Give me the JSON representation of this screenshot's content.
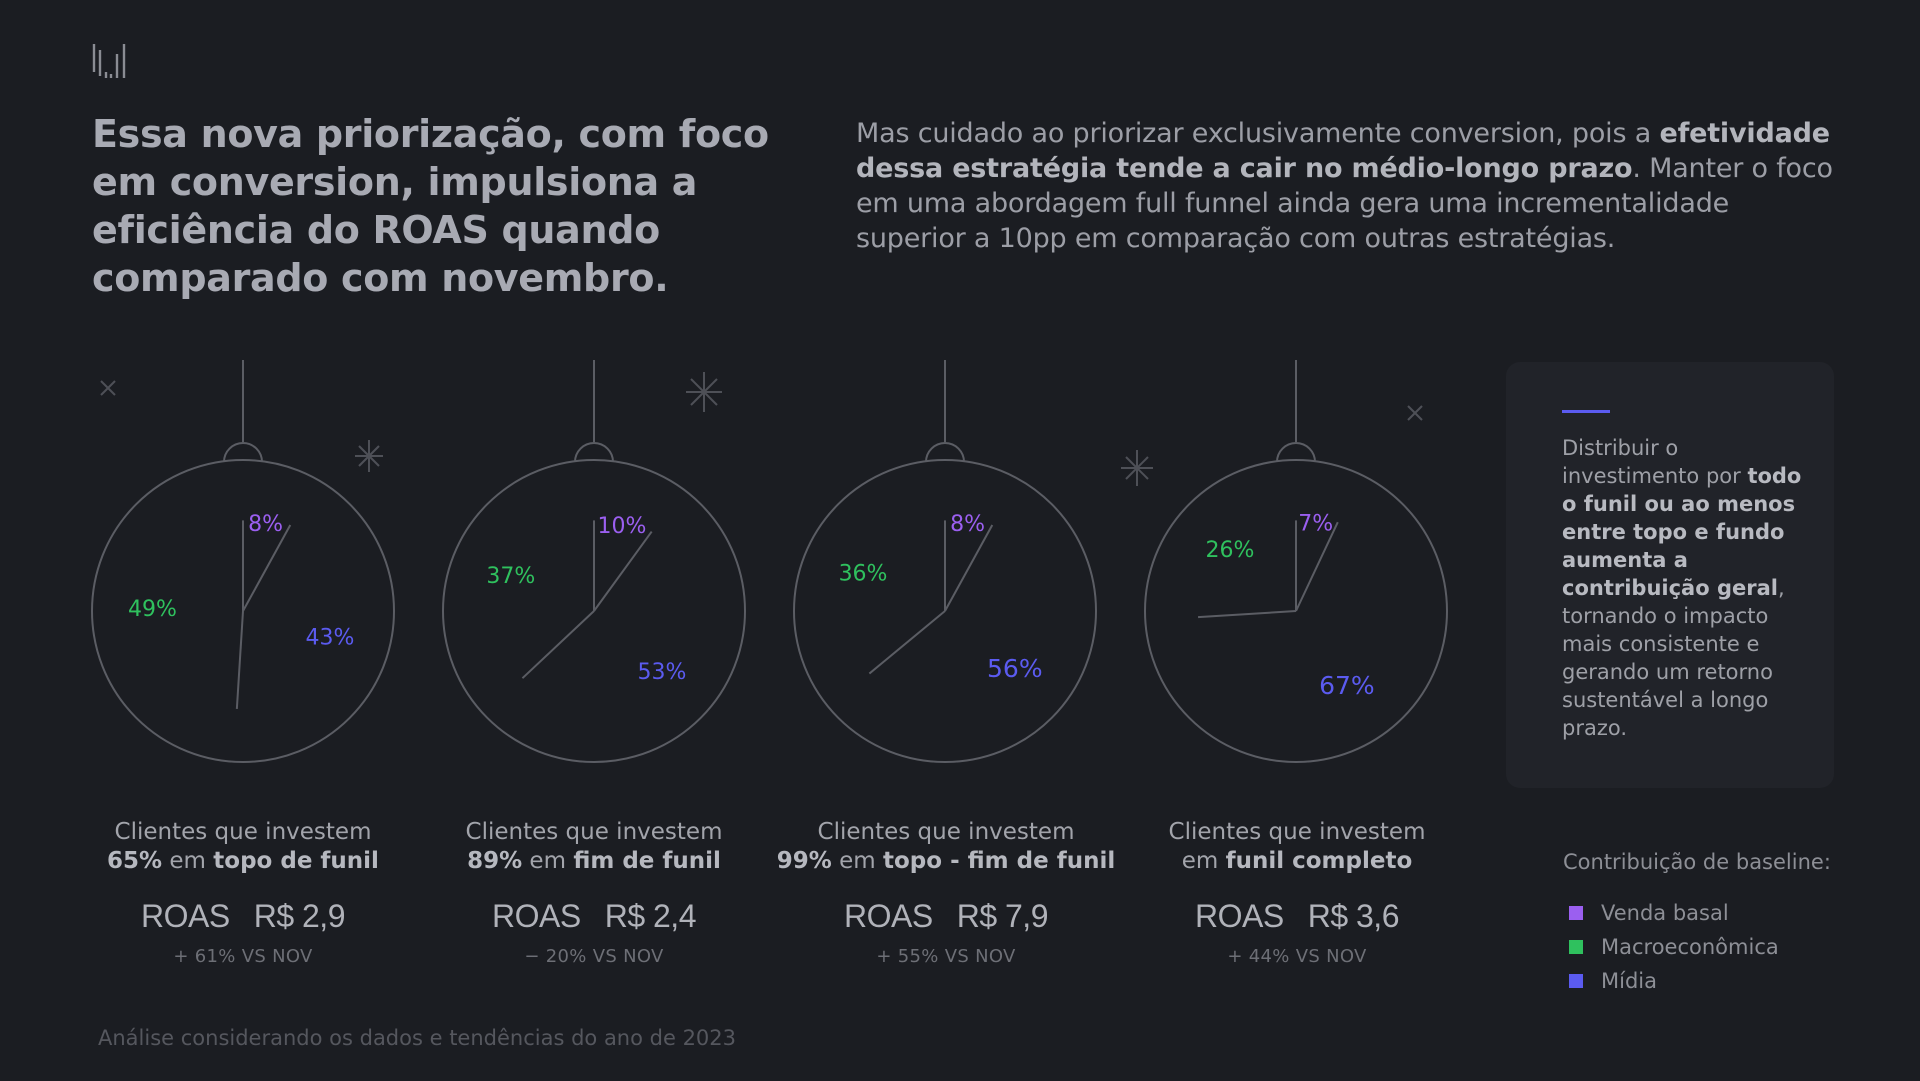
{
  "headline": "Essa nova priorização, com foco em conversion, impulsiona a eficiência do ROAS quando comparado com novembro.",
  "intro": {
    "part1": "Mas cuidado ao priorizar exclusivamente conversion, pois a ",
    "bold": "efetividade dessa estratégia tende a cair no médio-longo prazo",
    "part2": ". Manter o foco em uma abordagem full funnel ainda gera uma incrementalidade superior a 10pp em comparação com outras estratégias."
  },
  "colors": {
    "venda_basal": "#9b5ff0",
    "macroeconomica": "#2fc15e",
    "midia": "#5b5bf0",
    "line": "#5b5d64",
    "background": "#1b1d22"
  },
  "chart_data": [
    {
      "type": "pie",
      "slices": [
        {
          "category": "Venda basal",
          "value": 8,
          "label": "8%"
        },
        {
          "category": "Mídia",
          "value": 43,
          "label": "43%"
        },
        {
          "category": "Macroeconômica",
          "value": 49,
          "label": "49%"
        }
      ],
      "caption": {
        "line1": "Clientes que investem",
        "pct": "65%",
        "mid": " em ",
        "bold": "topo de funil"
      },
      "roas_label": "ROAS",
      "roas_value": "R$ 2,9",
      "delta": "+ 61% VS NOV"
    },
    {
      "type": "pie",
      "slices": [
        {
          "category": "Venda basal",
          "value": 10,
          "label": "10%"
        },
        {
          "category": "Mídia",
          "value": 53,
          "label": "53%"
        },
        {
          "category": "Macroeconômica",
          "value": 37,
          "label": "37%"
        }
      ],
      "caption": {
        "line1": "Clientes que investem",
        "pct": "89%",
        "mid": " em ",
        "bold": "fim de funil"
      },
      "roas_label": "ROAS",
      "roas_value": "R$ 2,4",
      "delta": "− 20% VS NOV"
    },
    {
      "type": "pie",
      "slices": [
        {
          "category": "Venda basal",
          "value": 8,
          "label": "8%"
        },
        {
          "category": "Mídia",
          "value": 56,
          "label": "56%"
        },
        {
          "category": "Macroeconômica",
          "value": 36,
          "label": "36%"
        }
      ],
      "caption": {
        "line1": "Clientes que investem",
        "pct": "99%",
        "mid": " em ",
        "bold": "topo - fim de funil"
      },
      "roas_label": "ROAS",
      "roas_value": "R$ 7,9",
      "delta": "+ 55% VS NOV"
    },
    {
      "type": "pie",
      "slices": [
        {
          "category": "Venda basal",
          "value": 7,
          "label": "7%"
        },
        {
          "category": "Mídia",
          "value": 67,
          "label": "67%"
        },
        {
          "category": "Macroeconômica",
          "value": 26,
          "label": "26%"
        }
      ],
      "caption": {
        "line1": "Clientes que investem",
        "pct": "",
        "mid": "em ",
        "bold": "funil completo"
      },
      "roas_label": "ROAS",
      "roas_value": "R$ 3,6",
      "delta": "+ 44% VS NOV"
    }
  ],
  "card": {
    "part1": "Distribuir o investimento por ",
    "bold": "todo o funil ou ao menos entre topo e fundo aumenta a contribuição geral",
    "part2": ", tornando o impacto mais consistente e gerando um retorno sustentável a longo prazo."
  },
  "legend": {
    "title": "Contribuição de baseline:",
    "items": [
      {
        "label": "Venda basal",
        "color": "#9b5ff0"
      },
      {
        "label": "Macroeconômica",
        "color": "#2fc15e"
      },
      {
        "label": "Mídia",
        "color": "#5b5bf0"
      }
    ]
  },
  "footnote": "Análise considerando os dados e tendências do ano de 2023",
  "icons": {
    "logo": "brand-logo-icon",
    "decor": [
      "x-mark-icon",
      "sparkle-icon"
    ]
  }
}
